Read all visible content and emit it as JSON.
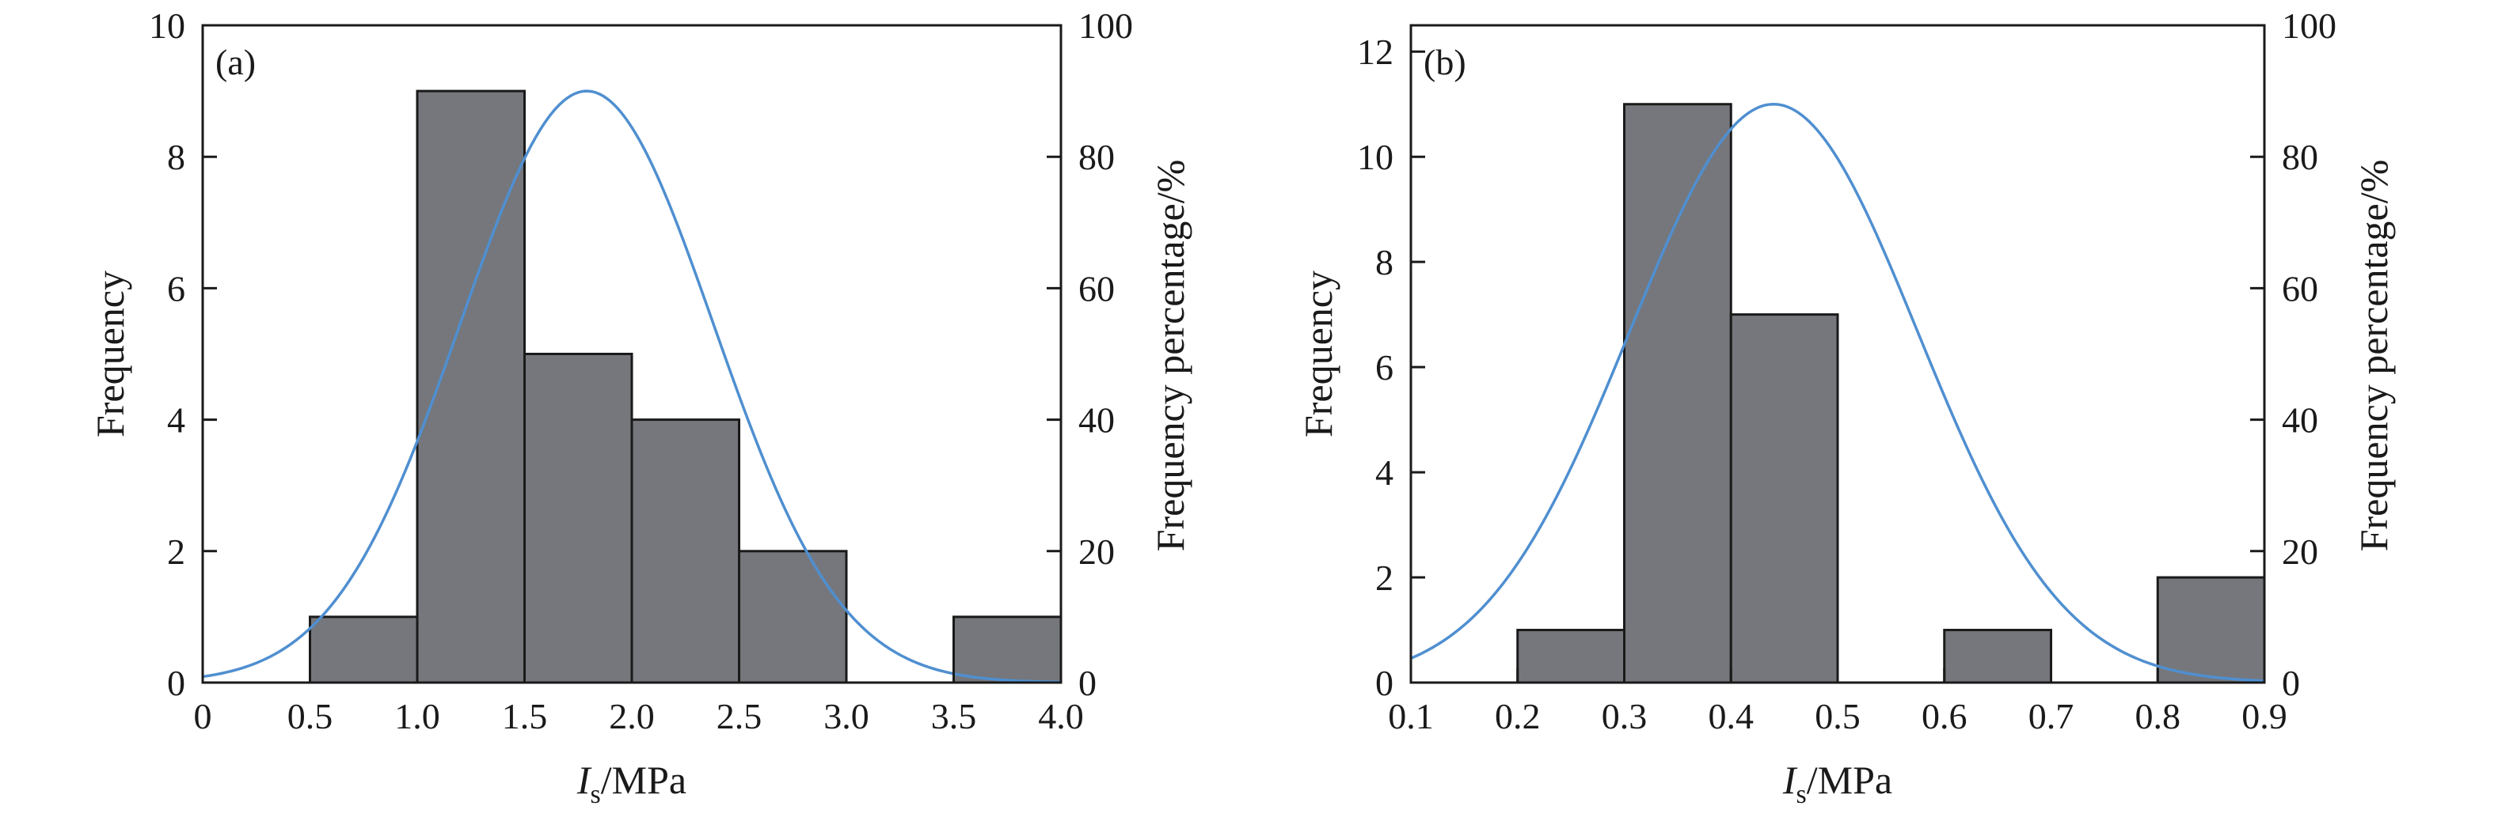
{
  "colors": {
    "bar_fill": "#75777c",
    "bar_stroke": "#1a1a1a",
    "curve": "#4f8fd0",
    "axis": "#1a1a1a"
  },
  "chart_data": [
    {
      "type": "bar",
      "panel_label": "(a)",
      "xlabel_italic": "I",
      "xlabel_sub": "s",
      "xlabel_rest": "/MPa",
      "ylabel": "Frequency",
      "y2label": "Frequency percentage/%",
      "xlim": [
        0,
        4.0
      ],
      "ylim": [
        0,
        10
      ],
      "y2lim": [
        0,
        100
      ],
      "xticks": [
        "0",
        "0.5",
        "1.0",
        "1.5",
        "2.0",
        "2.5",
        "3.0",
        "3.5",
        "4.0"
      ],
      "yticks": [
        "0",
        "2",
        "4",
        "6",
        "8",
        "10"
      ],
      "y2ticks": [
        "0",
        "20",
        "40",
        "60",
        "80",
        "100"
      ],
      "bins": [
        {
          "x0": 0.5,
          "x1": 1.0,
          "count": 1
        },
        {
          "x0": 1.0,
          "x1": 1.5,
          "count": 9
        },
        {
          "x0": 1.5,
          "x1": 2.0,
          "count": 5
        },
        {
          "x0": 2.0,
          "x1": 2.5,
          "count": 4
        },
        {
          "x0": 2.5,
          "x1": 3.0,
          "count": 2
        },
        {
          "x0": 3.5,
          "x1": 4.0,
          "count": 1
        }
      ],
      "normal_curve": {
        "mean": 1.79,
        "sd": 0.59,
        "peak_percent": 90
      }
    },
    {
      "type": "bar",
      "panel_label": "(b)",
      "xlabel_italic": "I",
      "xlabel_sub": "s",
      "xlabel_rest": "/MPa",
      "ylabel": "Frequency",
      "y2label": "Frequency percentage/%",
      "xlim": [
        0.1,
        0.9
      ],
      "ylim": [
        0,
        12.5
      ],
      "y2lim": [
        0,
        100
      ],
      "xticks": [
        "0.1",
        "0.2",
        "0.3",
        "0.4",
        "0.5",
        "0.6",
        "0.7",
        "0.8",
        "0.9"
      ],
      "yticks": [
        "0",
        "2",
        "4",
        "6",
        "8",
        "10",
        "12"
      ],
      "y2ticks": [
        "0",
        "20",
        "40",
        "60",
        "80",
        "100"
      ],
      "bins": [
        {
          "x0": 0.2,
          "x1": 0.3,
          "count": 1
        },
        {
          "x0": 0.3,
          "x1": 0.4,
          "count": 11
        },
        {
          "x0": 0.4,
          "x1": 0.5,
          "count": 7
        },
        {
          "x0": 0.6,
          "x1": 0.7,
          "count": 1
        },
        {
          "x0": 0.8,
          "x1": 0.9,
          "count": 2
        }
      ],
      "normal_curve": {
        "mean": 0.44,
        "sd": 0.135,
        "peak_percent": 88
      }
    }
  ]
}
